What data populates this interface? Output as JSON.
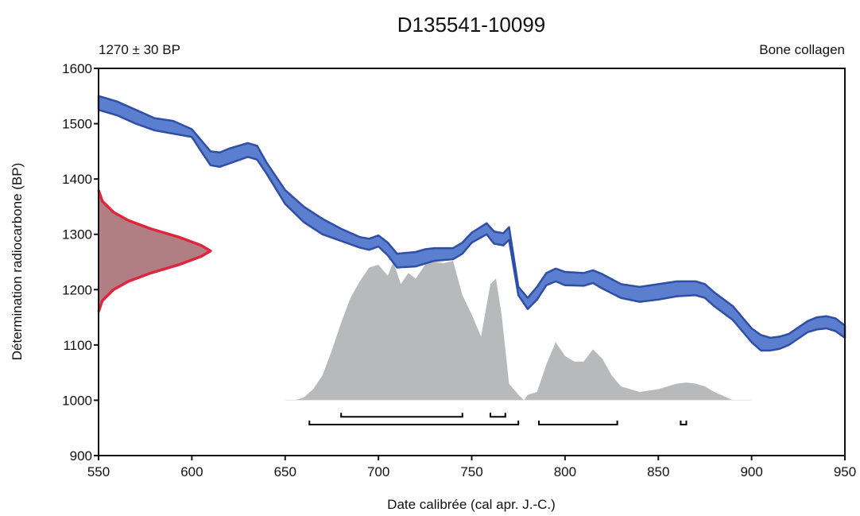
{
  "chart_data": {
    "type": "area",
    "title": "D135541-10099",
    "subtitle_left": "1270 ± 30 BP",
    "subtitle_right": "Bone collagen",
    "xlabel": "Date calibrée (cal apr. J.-C.)",
    "ylabel": "Détermination radiocarbone (BP)",
    "xlim": [
      550,
      950
    ],
    "ylim": [
      900,
      1600
    ],
    "x_ticks": [
      550,
      600,
      650,
      700,
      750,
      800,
      850,
      900,
      950
    ],
    "y_ticks": [
      900,
      1000,
      1100,
      1200,
      1300,
      1400,
      1500,
      1600
    ],
    "grid": false,
    "colors": {
      "calibration_fill": "#5b7fce",
      "calibration_edge": "#2f4ea8",
      "radiocarbon_fill": "#b07e83",
      "radiocarbon_edge": "#e0263f",
      "calibrated_fill": "#b8b9bb",
      "ranges": "#000000"
    },
    "calibration_curve": {
      "x": [
        550,
        560,
        570,
        580,
        590,
        600,
        605,
        610,
        615,
        620,
        630,
        635,
        640,
        650,
        660,
        670,
        680,
        690,
        695,
        700,
        705,
        710,
        720,
        725,
        730,
        740,
        745,
        750,
        758,
        762,
        767,
        770,
        775,
        780,
        785,
        790,
        795,
        800,
        810,
        815,
        820,
        830,
        840,
        850,
        860,
        870,
        875,
        880,
        890,
        900,
        905,
        910,
        915,
        920,
        930,
        935,
        940,
        945,
        950
      ],
      "upper": [
        1550,
        1540,
        1525,
        1510,
        1505,
        1490,
        1470,
        1450,
        1448,
        1455,
        1465,
        1460,
        1430,
        1380,
        1350,
        1328,
        1310,
        1295,
        1292,
        1298,
        1285,
        1265,
        1268,
        1273,
        1275,
        1275,
        1285,
        1303,
        1320,
        1305,
        1302,
        1313,
        1205,
        1185,
        1205,
        1230,
        1238,
        1232,
        1230,
        1235,
        1228,
        1210,
        1205,
        1210,
        1215,
        1215,
        1210,
        1195,
        1170,
        1130,
        1118,
        1113,
        1115,
        1120,
        1143,
        1150,
        1152,
        1148,
        1135
      ],
      "lower": [
        1525,
        1515,
        1500,
        1488,
        1482,
        1476,
        1450,
        1425,
        1422,
        1428,
        1440,
        1435,
        1410,
        1355,
        1322,
        1300,
        1288,
        1276,
        1272,
        1278,
        1262,
        1240,
        1242,
        1247,
        1252,
        1255,
        1265,
        1285,
        1300,
        1283,
        1280,
        1290,
        1190,
        1165,
        1182,
        1208,
        1215,
        1208,
        1207,
        1212,
        1202,
        1185,
        1178,
        1182,
        1188,
        1190,
        1185,
        1170,
        1145,
        1105,
        1090,
        1090,
        1093,
        1100,
        1123,
        1128,
        1130,
        1125,
        1113
      ]
    },
    "radiocarbon_distribution": {
      "x_max_at_peak": 610,
      "y": [
        1160,
        1180,
        1200,
        1215,
        1230,
        1245,
        1260,
        1270,
        1280,
        1295,
        1310,
        1325,
        1340,
        1360,
        1380
      ],
      "x": [
        550,
        552,
        558,
        566,
        578,
        593,
        605,
        610,
        605,
        593,
        578,
        566,
        558,
        552,
        550
      ]
    },
    "calibrated_distribution": {
      "x": [
        550,
        655,
        660,
        665,
        670,
        675,
        680,
        685,
        690,
        695,
        700,
        705,
        708,
        712,
        716,
        720,
        725,
        730,
        735,
        740,
        745,
        750,
        755,
        760,
        763,
        766,
        770,
        775,
        778,
        780,
        785,
        790,
        795,
        800,
        805,
        810,
        815,
        820,
        825,
        830,
        840,
        850,
        860,
        865,
        870,
        875,
        880,
        890,
        950
      ],
      "y": [
        1000,
        1000,
        1005,
        1020,
        1045,
        1090,
        1140,
        1185,
        1215,
        1240,
        1245,
        1225,
        1250,
        1210,
        1230,
        1220,
        1245,
        1250,
        1248,
        1252,
        1190,
        1155,
        1115,
        1210,
        1220,
        1155,
        1030,
        1010,
        1000,
        1010,
        1015,
        1065,
        1105,
        1080,
        1070,
        1070,
        1092,
        1075,
        1045,
        1025,
        1015,
        1020,
        1030,
        1032,
        1030,
        1025,
        1015,
        1000,
        1000
      ]
    },
    "ranges_68": [
      [
        680,
        745
      ],
      [
        760,
        768
      ]
    ],
    "ranges_95": [
      [
        663,
        775
      ],
      [
        786,
        828
      ],
      [
        862,
        865
      ]
    ]
  }
}
